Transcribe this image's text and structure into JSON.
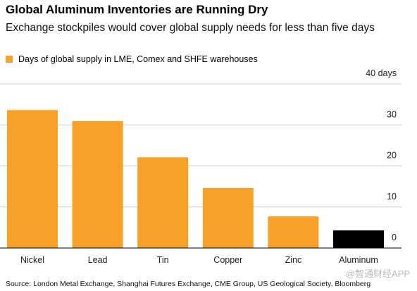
{
  "chart_data": {
    "type": "bar",
    "title": "Global Aluminum Inventories are Running Dry",
    "subtitle": "Exchange stockpiles would cover global supply needs for less than five days",
    "categories": [
      "Nickel",
      "Lead",
      "Tin",
      "Copper",
      "Zinc",
      "Aluminum"
    ],
    "series": [
      {
        "name": "Days of global supply in LME, Comex and SHFE warehouses",
        "color": "#f7a128",
        "values": [
          33.6,
          30.9,
          22.1,
          14.6,
          7.7,
          4.3
        ],
        "point_colors": [
          "#f7a128",
          "#f7a128",
          "#f7a128",
          "#f7a128",
          "#f7a128",
          "#000000"
        ]
      }
    ],
    "ylim": [
      0,
      40
    ],
    "yticks": [
      0,
      10,
      20,
      30,
      {
        "value": 40,
        "label": "40 days"
      }
    ],
    "grid": true,
    "source": "Source: London Metal Exchange, Shanghai Futures Exchange, CME Group, US Geological Society, Bloomberg",
    "watermark": "@智通财经APP"
  }
}
